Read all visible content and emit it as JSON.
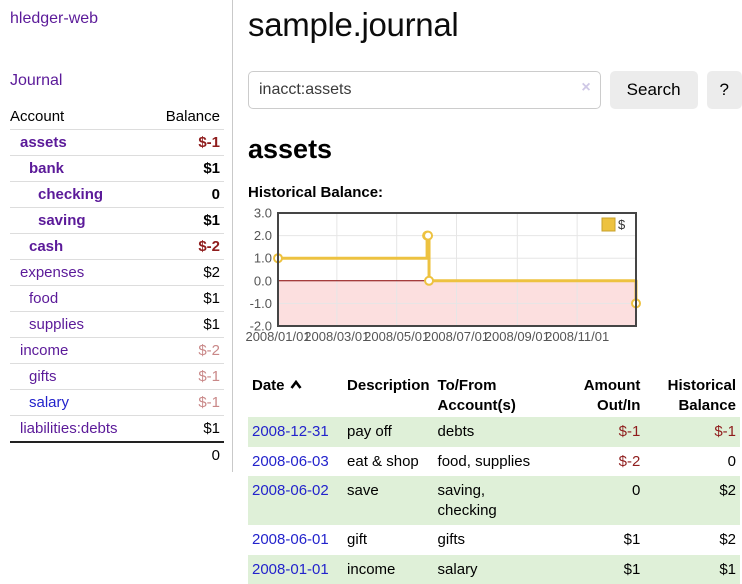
{
  "colors": {
    "link_purple": "#5b1a99",
    "link_blue": "#2323cc",
    "negative": "#8f1d1d",
    "soft_negative": "#c98888",
    "row_green": "#dff0d8",
    "chart_line": "#edc240",
    "chart_line_border": "#c7a12c",
    "chart_fill_negative": "#fcdfdf",
    "zero_line": "#8b0000",
    "grid": "#e6e6e6"
  },
  "app": {
    "brand": "hledger-web",
    "nav_journal": "Journal"
  },
  "sidebar": {
    "header": {
      "account": "Account",
      "balance": "Balance"
    },
    "accounts": [
      {
        "name": "assets",
        "depth": 1,
        "bold": true,
        "balance": "$-1"
      },
      {
        "name": "bank",
        "depth": 2,
        "bold": true,
        "balance": "$1"
      },
      {
        "name": "checking",
        "depth": 3,
        "bold": true,
        "balance": "0"
      },
      {
        "name": "saving",
        "depth": 3,
        "bold": true,
        "balance": "$1"
      },
      {
        "name": "cash",
        "depth": 2,
        "bold": true,
        "balance": "$-2"
      },
      {
        "name": "expenses",
        "depth": 1,
        "bold": false,
        "balance": "$2"
      },
      {
        "name": "food",
        "depth": 2,
        "bold": false,
        "balance": "$1"
      },
      {
        "name": "supplies",
        "depth": 2,
        "bold": false,
        "balance": "$1"
      },
      {
        "name": "income",
        "depth": 1,
        "bold": false,
        "balance": "$-2"
      },
      {
        "name": "gifts",
        "depth": 2,
        "bold": false,
        "balance": "$-1"
      },
      {
        "name": "salary",
        "depth": 2,
        "bold": false,
        "balance": "$-1",
        "link_color": "#2323cc"
      },
      {
        "name": "liabilities:debts",
        "depth": 1,
        "bold": false,
        "balance": "$1"
      }
    ],
    "total": "0"
  },
  "header": {
    "title": "sample.journal"
  },
  "search": {
    "value": "inacct:assets",
    "clear_icon": "×",
    "button_label": "Search",
    "help_label": "?"
  },
  "main": {
    "account_title": "assets",
    "chart_heading": "Historical Balance:"
  },
  "chart_data": {
    "type": "line",
    "title": "Historical Balance:",
    "step": true,
    "series": [
      {
        "name": "$",
        "color": "#edc240",
        "points": [
          [
            "2008-01-01",
            1
          ],
          [
            "2008-06-01",
            2
          ],
          [
            "2008-06-02",
            2
          ],
          [
            "2008-06-03",
            0
          ],
          [
            "2008-12-31",
            -1
          ]
        ]
      }
    ],
    "xlim": [
      "2008-01-01",
      "2008-12-31"
    ],
    "ylim": [
      -2.0,
      3.0
    ],
    "y_ticks": [
      -2.0,
      -1.0,
      0.0,
      1.0,
      2.0,
      3.0
    ],
    "x_ticks": [
      "2008/01/01",
      "2008/03/01",
      "2008/05/01",
      "2008/07/01",
      "2008/09/01",
      "2008/11/01"
    ],
    "legend_position": "top-right",
    "grid": true,
    "negative_region_shaded": true
  },
  "register": {
    "headers": [
      "Date",
      "Description",
      "To/From Account(s)",
      "Amount Out/In",
      "Historical Balance"
    ],
    "sort": {
      "column": "Date",
      "direction": "ascending"
    },
    "rows": [
      {
        "date": "2008-12-31",
        "description": "pay off",
        "accounts": [
          "debts"
        ],
        "amount": "$-1",
        "balance": "$-1"
      },
      {
        "date": "2008-06-03",
        "description": "eat & shop",
        "accounts": [
          "food, supplies"
        ],
        "amount": "$-2",
        "balance": "0"
      },
      {
        "date": "2008-06-02",
        "description": "save",
        "accounts": [
          "saving,",
          "checking"
        ],
        "amount": "0",
        "balance": "$2"
      },
      {
        "date": "2008-06-01",
        "description": "gift",
        "accounts": [
          "gifts"
        ],
        "amount": "$1",
        "balance": "$2"
      },
      {
        "date": "2008-01-01",
        "description": "income",
        "accounts": [
          "salary"
        ],
        "amount": "$1",
        "balance": "$1"
      }
    ]
  }
}
